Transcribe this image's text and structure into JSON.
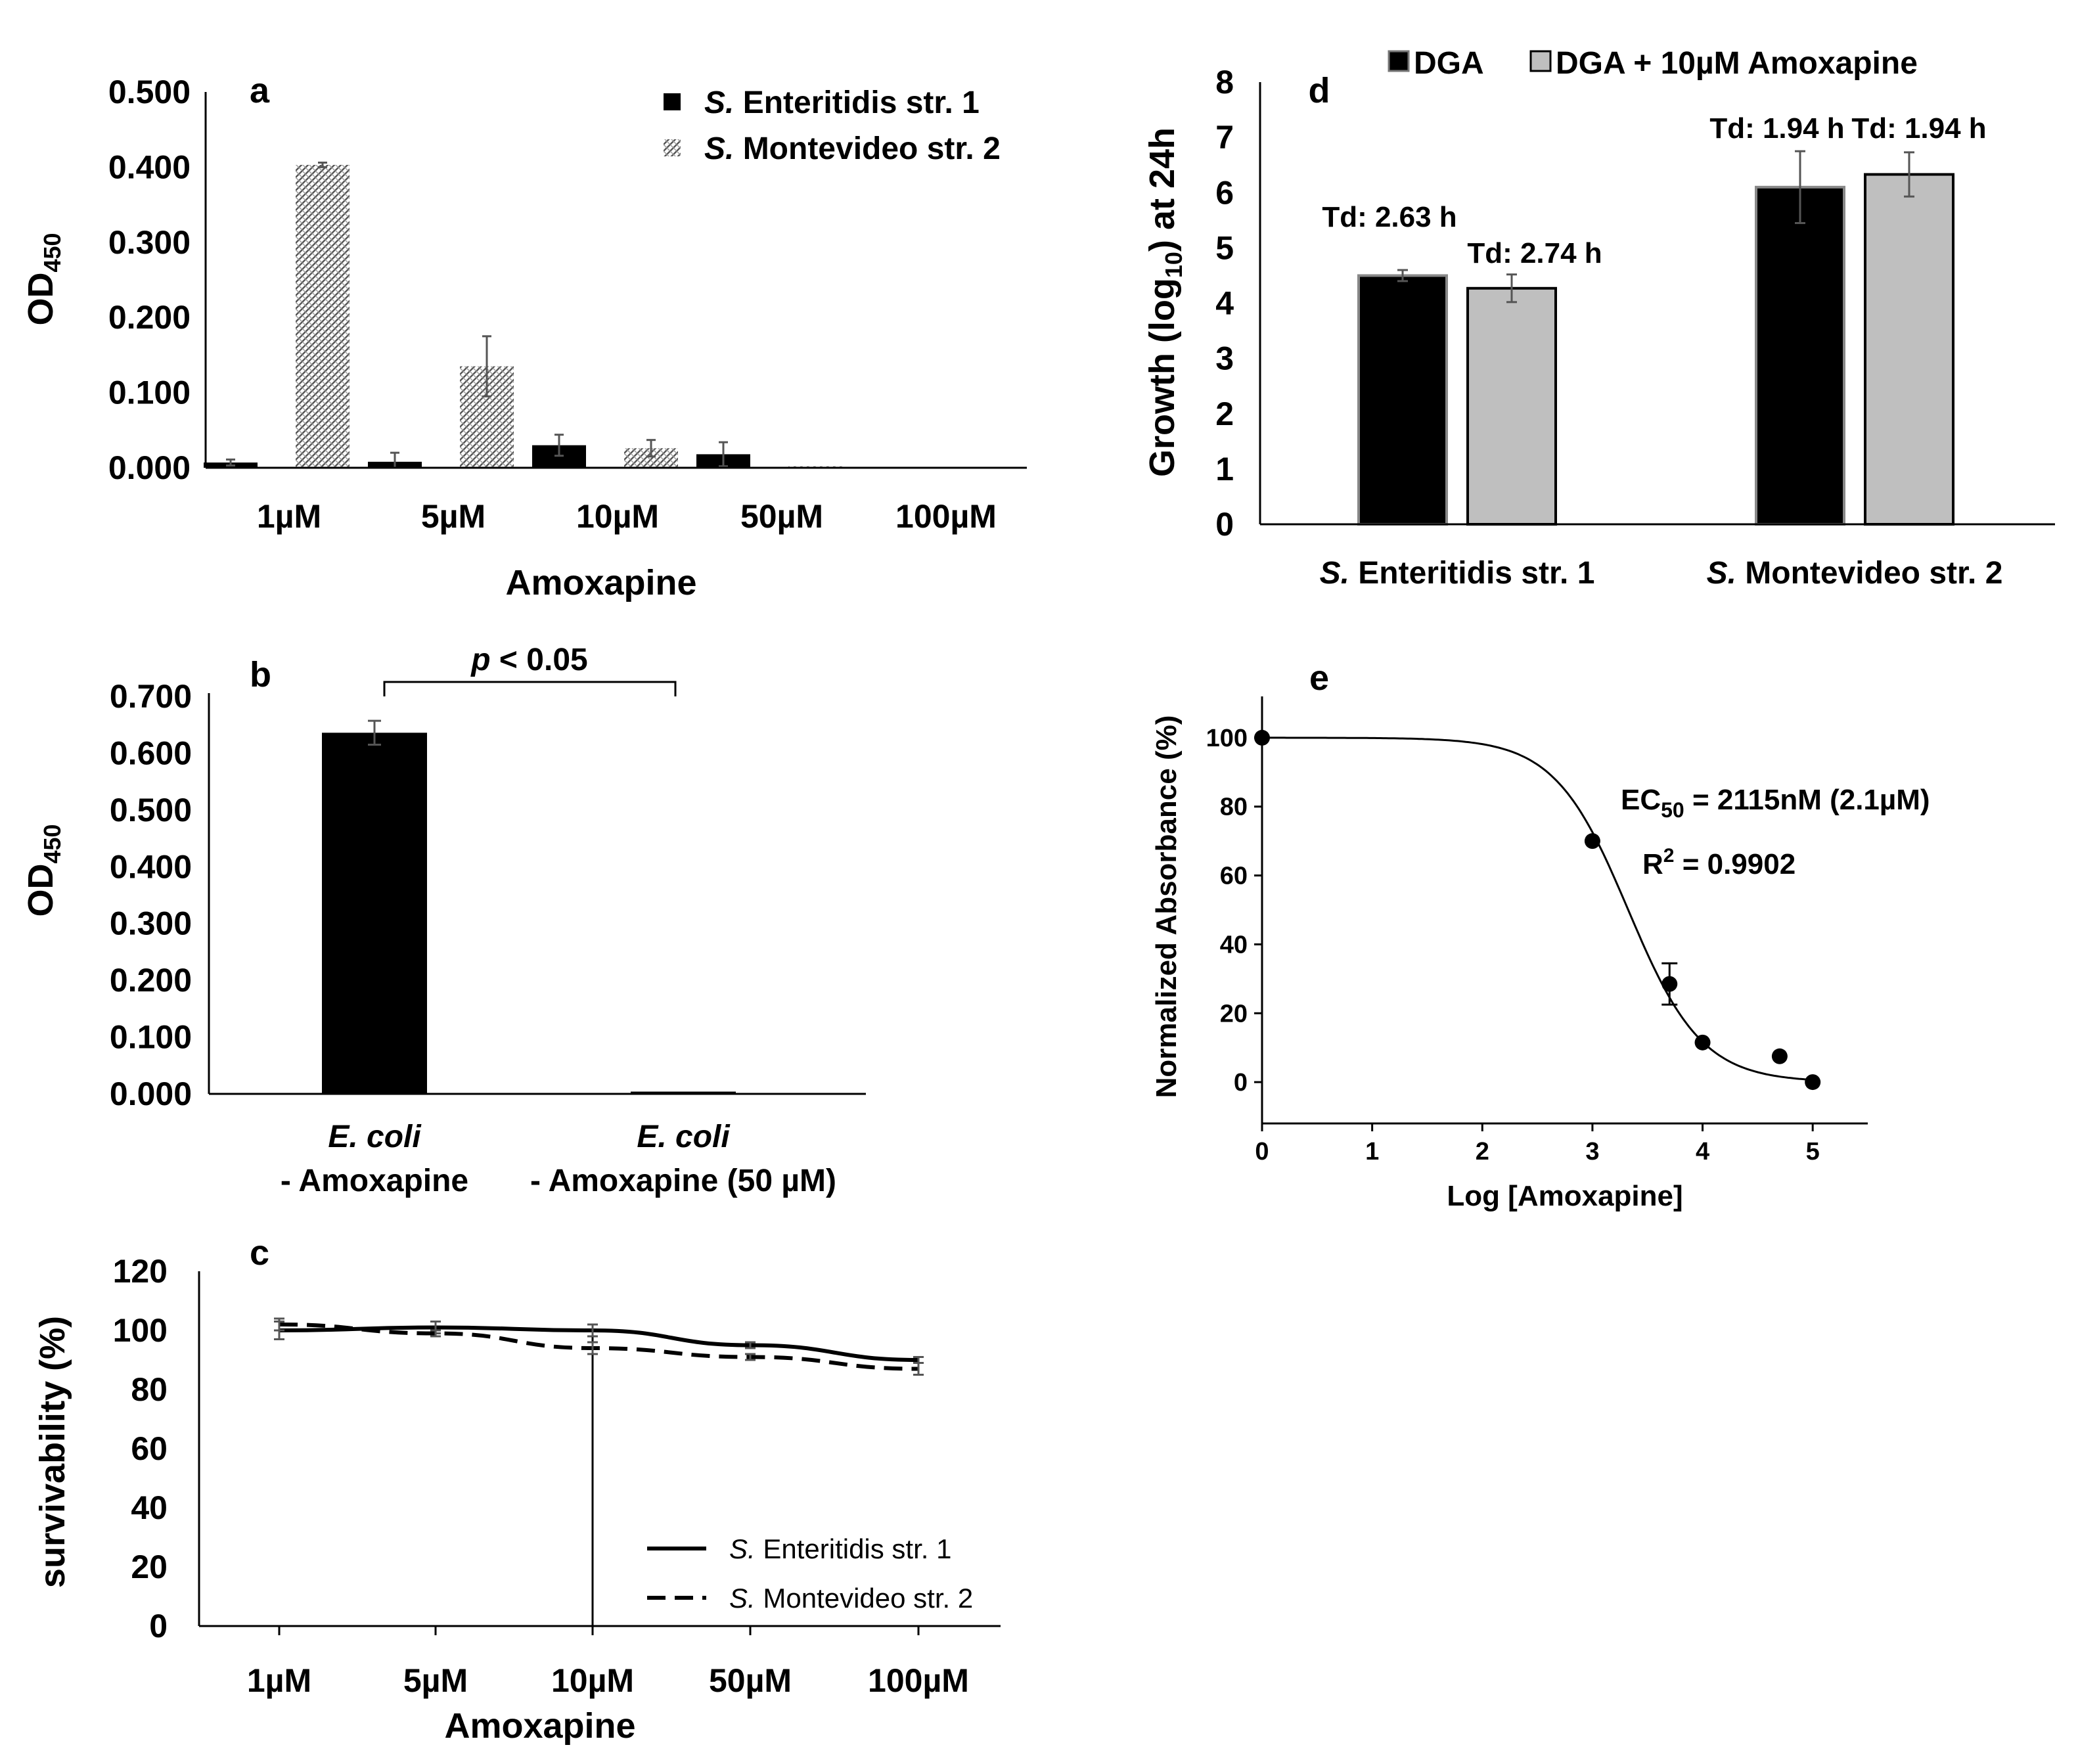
{
  "chart_data": [
    {
      "id": "a",
      "type": "bar",
      "panel_label": "a",
      "categories": [
        "1µM",
        "5µM",
        "10µM",
        "50µM",
        "100µM"
      ],
      "series": [
        {
          "name": "S. Enteritidis str. 1",
          "italic_part": "S.",
          "rest": " Enteritidis str. 1",
          "values": [
            0.007,
            0.008,
            0.03,
            0.018,
            0.0
          ],
          "errors": [
            0.004,
            0.012,
            0.014,
            0.016,
            0.0
          ]
        },
        {
          "name": "S. Montevideo str. 2",
          "italic_part": "S.",
          "rest": " Montevideo str. 2",
          "values": [
            0.403,
            0.135,
            0.026,
            0.002,
            0.0
          ],
          "errors": [
            0.003,
            0.04,
            0.011,
            0.0,
            0.0
          ]
        }
      ],
      "title": "",
      "xlabel": "Amoxapine",
      "ylabel": "OD450",
      "ylabel_main": "OD",
      "ylabel_sub": "450",
      "yticks": [
        "0.000",
        "0.100",
        "0.200",
        "0.300",
        "0.400",
        "0.500"
      ],
      "ylim": [
        0,
        0.5
      ]
    },
    {
      "id": "b",
      "type": "bar",
      "panel_label": "b",
      "categories": [
        "E. coli - Amoxapine",
        "E. coli - Amoxapine (50 µM)"
      ],
      "category_lines": [
        [
          "E. coli",
          "- Amoxapine"
        ],
        [
          "E. coli",
          "- Amoxapine  (50 µM)"
        ]
      ],
      "values": [
        0.636,
        0.004
      ],
      "errors": [
        0.021,
        0.0
      ],
      "annotation": "p < 0.05",
      "annotation_italic": "p",
      "annotation_rest": " < 0.05",
      "ylabel": "OD450",
      "ylabel_main": "OD",
      "ylabel_sub": "450",
      "yticks": [
        "0.000",
        "0.100",
        "0.200",
        "0.300",
        "0.400",
        "0.500",
        "0.600",
        "0.700"
      ],
      "ylim": [
        0,
        0.7
      ]
    },
    {
      "id": "c",
      "type": "line",
      "panel_label": "c",
      "categories": [
        "1µM",
        "5µM",
        "10µM",
        "50µM",
        "100µM"
      ],
      "series": [
        {
          "name": "S. Enteritidis str. 1",
          "italic_part": "S.",
          "rest": " Enteritidis str. 1",
          "style": "solid",
          "values": [
            100,
            101,
            100,
            95,
            90
          ],
          "errors": [
            3,
            2,
            2,
            1,
            1
          ]
        },
        {
          "name": "S. Montevideo str. 2",
          "italic_part": "S.",
          "rest": " Montevideo str. 2",
          "style": "dashed",
          "values": [
            102,
            99,
            94,
            91,
            87
          ],
          "errors": [
            2,
            1,
            2,
            1,
            2
          ]
        }
      ],
      "xlabel": "Amoxapine",
      "ylabel": "survivability (%)",
      "yticks": [
        "0",
        "20",
        "40",
        "60",
        "80",
        "100",
        "120"
      ],
      "ylim": [
        0,
        120
      ]
    },
    {
      "id": "d",
      "type": "bar",
      "panel_label": "d",
      "categories": [
        "S. Enteritidis str. 1",
        "S. Montevideo str. 2"
      ],
      "category_parts": [
        [
          "S.",
          " Enteritidis str. 1"
        ],
        [
          "S.",
          " Montevideo str. 2"
        ]
      ],
      "series": [
        {
          "name": "DGA",
          "color": "#000000",
          "values": [
            4.5,
            6.1
          ],
          "errors": [
            0.1,
            0.65
          ]
        },
        {
          "name": "DGA + 10µM Amoxapine",
          "color": "#bfbfbf",
          "values": [
            4.27,
            6.33
          ],
          "errors": [
            0.25,
            0.4
          ]
        }
      ],
      "annotations": [
        "Td: 2.63 h",
        "Td: 2.74 h",
        "Td: 1.94 h",
        "Td: 1.94 h"
      ],
      "ylabel": "Growth (log10) at 24h",
      "ylabel_a": "Growth (log",
      "ylabel_sub": "10",
      "ylabel_b": ") at 24h",
      "yticks": [
        "0",
        "1",
        "2",
        "3",
        "4",
        "5",
        "6",
        "7",
        "8"
      ],
      "ylim": [
        0,
        8
      ]
    },
    {
      "id": "e",
      "type": "scatter",
      "panel_label": "e",
      "x": [
        0,
        3,
        3.7,
        4,
        4.7,
        5
      ],
      "y": [
        100,
        70,
        28.5,
        11.5,
        7.5,
        0
      ],
      "errors": [
        0,
        0,
        6,
        0,
        0,
        0
      ],
      "fit": {
        "top": 100,
        "bottom": 0,
        "logEC50": 3.325,
        "hill": 1.3
      },
      "annotations": {
        "ec50_main": "EC",
        "ec50_sub": "50",
        "ec50_rest": " = 2115nM (2.1µM)",
        "r2_main": "R",
        "r2_sup": "2",
        "r2_rest": " = 0.9902"
      },
      "xlabel": "Log [Amoxapine]",
      "ylabel": "Normalized Absorbance (%)",
      "xticks": [
        "0",
        "1",
        "2",
        "3",
        "4",
        "5"
      ],
      "yticks": [
        "0",
        "20",
        "40",
        "60",
        "80",
        "100"
      ],
      "xlim": [
        0,
        5.5
      ],
      "ylim": [
        -12,
        112
      ]
    }
  ]
}
